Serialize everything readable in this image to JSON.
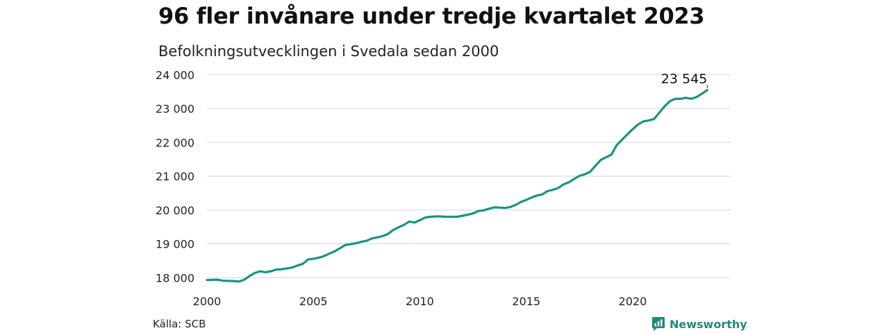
{
  "title": "96 fler invånare under tredje kvartalet 2023",
  "subtitle": "Befolkningsutvecklingen i Svedala sedan 2000",
  "source": "Källa: SCB",
  "brand": {
    "name": "Newsworthy",
    "icon": "newsworthy-logo-icon",
    "color": "#1f8b7a"
  },
  "colors": {
    "line": "#1a9381",
    "grid": "#dddddd"
  },
  "chart_data": {
    "type": "line",
    "title": "96 fler invånare under tredje kvartalet 2023",
    "subtitle": "Befolkningsutvecklingen i Svedala sedan 2000",
    "xlabel": "",
    "ylabel": "",
    "xlim": [
      2000,
      2024.6
    ],
    "ylim": [
      17800,
      24200
    ],
    "x_ticks": [
      2000,
      2005,
      2010,
      2015,
      2020
    ],
    "x_tick_labels": [
      "2000",
      "2005",
      "2010",
      "2015",
      "2020"
    ],
    "y_ticks": [
      18000,
      19000,
      20000,
      21000,
      22000,
      23000,
      24000
    ],
    "y_tick_labels": [
      "18 000",
      "19 000",
      "20 000",
      "21 000",
      "22 000",
      "23 000",
      "24 000"
    ],
    "grid": "horizontal",
    "end_label": "23 545",
    "series": [
      {
        "x": [
          2000.0,
          2000.25,
          2000.5,
          2000.75,
          2001.0,
          2001.25,
          2001.5,
          2001.75,
          2002.0,
          2002.25,
          2002.5,
          2002.75,
          2003.0,
          2003.25,
          2003.5,
          2003.75,
          2004.0,
          2004.25,
          2004.5,
          2004.75,
          2005.0,
          2005.25,
          2005.5,
          2005.75,
          2006.0,
          2006.25,
          2006.5,
          2006.75,
          2007.0,
          2007.25,
          2007.5,
          2007.75,
          2008.0,
          2008.25,
          2008.5,
          2008.75,
          2009.0,
          2009.25,
          2009.5,
          2009.75,
          2010.0,
          2010.25,
          2010.5,
          2010.75,
          2011.0,
          2011.25,
          2011.5,
          2011.75,
          2012.0,
          2012.25,
          2012.5,
          2012.75,
          2013.0,
          2013.25,
          2013.5,
          2013.75,
          2014.0,
          2014.25,
          2014.5,
          2014.75,
          2015.0,
          2015.25,
          2015.5,
          2015.75,
          2016.0,
          2016.25,
          2016.5,
          2016.75,
          2017.0,
          2017.25,
          2017.5,
          2017.75,
          2018.0,
          2018.25,
          2018.5,
          2018.75,
          2019.0,
          2019.25,
          2019.5,
          2019.75,
          2020.0,
          2020.25,
          2020.5,
          2020.75,
          2021.0,
          2021.25,
          2021.5,
          2021.75,
          2022.0,
          2022.25,
          2022.5,
          2022.75,
          2023.0,
          2023.25,
          2023.5
        ],
        "values": [
          17930,
          17935,
          17940,
          17910,
          17905,
          17900,
          17885,
          17940,
          18050,
          18140,
          18190,
          18160,
          18190,
          18240,
          18250,
          18270,
          18300,
          18360,
          18410,
          18540,
          18560,
          18590,
          18640,
          18710,
          18780,
          18870,
          18970,
          18990,
          19020,
          19060,
          19090,
          19160,
          19190,
          19230,
          19290,
          19410,
          19490,
          19560,
          19660,
          19630,
          19700,
          19780,
          19800,
          19810,
          19810,
          19800,
          19800,
          19800,
          19830,
          19860,
          19900,
          19970,
          19990,
          20040,
          20080,
          20070,
          20060,
          20090,
          20150,
          20240,
          20300,
          20370,
          20430,
          20460,
          20560,
          20600,
          20650,
          20760,
          20820,
          20920,
          21010,
          21060,
          21130,
          21310,
          21480,
          21560,
          21640,
          21920,
          22080,
          22240,
          22390,
          22530,
          22620,
          22650,
          22690,
          22880,
          23070,
          23220,
          23290,
          23290,
          23320,
          23290,
          23340,
          23440,
          23545
        ]
      }
    ]
  }
}
